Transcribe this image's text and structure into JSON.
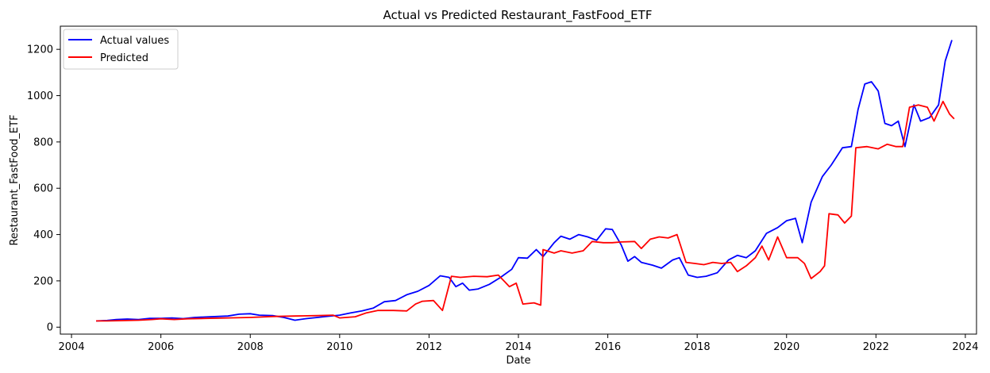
{
  "chart_data": {
    "type": "line",
    "title": "Actual vs Predicted Restaurant_FastFood_ETF",
    "xlabel": "Date",
    "ylabel": "Restaurant_FastFood_ETF",
    "xlim": [
      2003.75,
      2024.25
    ],
    "ylim": [
      -30,
      1300
    ],
    "x_ticks": [
      2004,
      2006,
      2008,
      2010,
      2012,
      2014,
      2016,
      2018,
      2020,
      2022,
      2024
    ],
    "x_tick_labels": [
      "2004",
      "2006",
      "2008",
      "2010",
      "2012",
      "2014",
      "2016",
      "2018",
      "2020",
      "2022",
      "2024"
    ],
    "y_ticks": [
      0,
      200,
      400,
      600,
      800,
      1000,
      1200
    ],
    "y_tick_labels": [
      "0",
      "200",
      "400",
      "600",
      "800",
      "1000",
      "1200"
    ],
    "grid": false,
    "legend_position": "top-left",
    "series": [
      {
        "name": "Actual values",
        "color": "#0000ff",
        "points": [
          [
            2004.55,
            27
          ],
          [
            2004.8,
            29
          ],
          [
            2005.0,
            33
          ],
          [
            2005.25,
            35
          ],
          [
            2005.5,
            33
          ],
          [
            2005.75,
            38
          ],
          [
            2006.0,
            38
          ],
          [
            2006.25,
            40
          ],
          [
            2006.5,
            37
          ],
          [
            2006.75,
            42
          ],
          [
            2007.0,
            44
          ],
          [
            2007.25,
            46
          ],
          [
            2007.5,
            48
          ],
          [
            2007.75,
            56
          ],
          [
            2008.0,
            58
          ],
          [
            2008.2,
            52
          ],
          [
            2008.5,
            50
          ],
          [
            2008.75,
            42
          ],
          [
            2009.0,
            30
          ],
          [
            2009.25,
            37
          ],
          [
            2009.5,
            42
          ],
          [
            2009.75,
            47
          ],
          [
            2010.0,
            52
          ],
          [
            2010.25,
            62
          ],
          [
            2010.5,
            70
          ],
          [
            2010.75,
            82
          ],
          [
            2011.0,
            110
          ],
          [
            2011.25,
            115
          ],
          [
            2011.5,
            140
          ],
          [
            2011.75,
            155
          ],
          [
            2012.0,
            180
          ],
          [
            2012.25,
            222
          ],
          [
            2012.45,
            215
          ],
          [
            2012.6,
            175
          ],
          [
            2012.75,
            190
          ],
          [
            2012.9,
            160
          ],
          [
            2013.1,
            165
          ],
          [
            2013.35,
            185
          ],
          [
            2013.6,
            215
          ],
          [
            2013.85,
            250
          ],
          [
            2014.0,
            300
          ],
          [
            2014.2,
            298
          ],
          [
            2014.4,
            335
          ],
          [
            2014.55,
            305
          ],
          [
            2014.8,
            365
          ],
          [
            2014.95,
            393
          ],
          [
            2015.15,
            380
          ],
          [
            2015.35,
            400
          ],
          [
            2015.55,
            390
          ],
          [
            2015.75,
            375
          ],
          [
            2015.95,
            425
          ],
          [
            2016.1,
            422
          ],
          [
            2016.3,
            355
          ],
          [
            2016.45,
            285
          ],
          [
            2016.6,
            305
          ],
          [
            2016.75,
            280
          ],
          [
            2017.0,
            268
          ],
          [
            2017.2,
            255
          ],
          [
            2017.45,
            290
          ],
          [
            2017.6,
            300
          ],
          [
            2017.8,
            225
          ],
          [
            2018.0,
            215
          ],
          [
            2018.2,
            220
          ],
          [
            2018.45,
            235
          ],
          [
            2018.7,
            290
          ],
          [
            2018.9,
            310
          ],
          [
            2019.1,
            300
          ],
          [
            2019.3,
            330
          ],
          [
            2019.55,
            405
          ],
          [
            2019.8,
            430
          ],
          [
            2020.0,
            460
          ],
          [
            2020.2,
            470
          ],
          [
            2020.35,
            365
          ],
          [
            2020.55,
            540
          ],
          [
            2020.8,
            650
          ],
          [
            2021.0,
            700
          ],
          [
            2021.25,
            775
          ],
          [
            2021.45,
            780
          ],
          [
            2021.6,
            940
          ],
          [
            2021.75,
            1050
          ],
          [
            2021.9,
            1060
          ],
          [
            2022.05,
            1020
          ],
          [
            2022.2,
            880
          ],
          [
            2022.35,
            870
          ],
          [
            2022.5,
            890
          ],
          [
            2022.65,
            780
          ],
          [
            2022.85,
            960
          ],
          [
            2023.0,
            890
          ],
          [
            2023.2,
            905
          ],
          [
            2023.4,
            960
          ],
          [
            2023.55,
            1150
          ],
          [
            2023.7,
            1240
          ]
        ]
      },
      {
        "name": "Predicted",
        "color": "#ff0000",
        "points": [
          [
            2004.55,
            27
          ],
          [
            2004.8,
            27
          ],
          [
            2005.0,
            28
          ],
          [
            2005.5,
            30
          ],
          [
            2005.8,
            33
          ],
          [
            2006.0,
            36
          ],
          [
            2006.3,
            33
          ],
          [
            2006.6,
            36
          ],
          [
            2007.0,
            38
          ],
          [
            2007.5,
            40
          ],
          [
            2008.0,
            42
          ],
          [
            2008.5,
            46
          ],
          [
            2009.0,
            48
          ],
          [
            2009.5,
            50
          ],
          [
            2009.85,
            52
          ],
          [
            2010.0,
            40
          ],
          [
            2010.35,
            45
          ],
          [
            2010.6,
            62
          ],
          [
            2010.85,
            72
          ],
          [
            2011.2,
            72
          ],
          [
            2011.5,
            70
          ],
          [
            2011.7,
            100
          ],
          [
            2011.85,
            112
          ],
          [
            2012.1,
            115
          ],
          [
            2012.3,
            72
          ],
          [
            2012.5,
            220
          ],
          [
            2012.7,
            215
          ],
          [
            2013.0,
            220
          ],
          [
            2013.3,
            218
          ],
          [
            2013.55,
            225
          ],
          [
            2013.8,
            175
          ],
          [
            2013.95,
            190
          ],
          [
            2014.1,
            100
          ],
          [
            2014.35,
            105
          ],
          [
            2014.5,
            95
          ],
          [
            2014.55,
            335
          ],
          [
            2014.8,
            320
          ],
          [
            2014.95,
            330
          ],
          [
            2015.2,
            320
          ],
          [
            2015.45,
            330
          ],
          [
            2015.65,
            370
          ],
          [
            2015.9,
            365
          ],
          [
            2016.1,
            365
          ],
          [
            2016.3,
            368
          ],
          [
            2016.6,
            370
          ],
          [
            2016.75,
            340
          ],
          [
            2016.95,
            380
          ],
          [
            2017.15,
            390
          ],
          [
            2017.35,
            385
          ],
          [
            2017.55,
            400
          ],
          [
            2017.75,
            280
          ],
          [
            2017.95,
            275
          ],
          [
            2018.15,
            270
          ],
          [
            2018.35,
            280
          ],
          [
            2018.55,
            275
          ],
          [
            2018.75,
            280
          ],
          [
            2018.9,
            240
          ],
          [
            2019.1,
            265
          ],
          [
            2019.3,
            300
          ],
          [
            2019.45,
            350
          ],
          [
            2019.6,
            290
          ],
          [
            2019.8,
            390
          ],
          [
            2020.0,
            300
          ],
          [
            2020.25,
            300
          ],
          [
            2020.4,
            275
          ],
          [
            2020.55,
            210
          ],
          [
            2020.75,
            240
          ],
          [
            2020.85,
            265
          ],
          [
            2020.95,
            490
          ],
          [
            2021.15,
            485
          ],
          [
            2021.3,
            450
          ],
          [
            2021.45,
            480
          ],
          [
            2021.55,
            775
          ],
          [
            2021.8,
            780
          ],
          [
            2022.05,
            770
          ],
          [
            2022.25,
            790
          ],
          [
            2022.45,
            780
          ],
          [
            2022.6,
            780
          ],
          [
            2022.75,
            950
          ],
          [
            2022.95,
            960
          ],
          [
            2023.15,
            950
          ],
          [
            2023.3,
            890
          ],
          [
            2023.5,
            975
          ],
          [
            2023.65,
            920
          ],
          [
            2023.75,
            900
          ]
        ]
      }
    ]
  }
}
